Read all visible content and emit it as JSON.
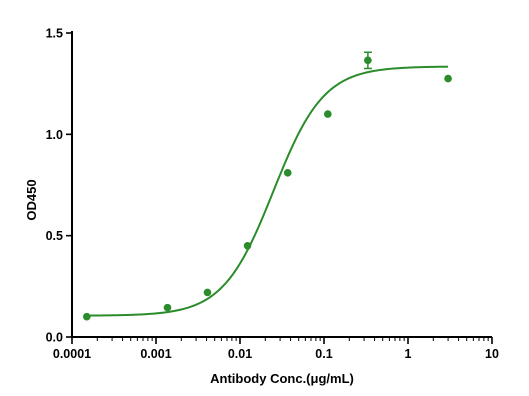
{
  "chart_data": {
    "type": "scatter",
    "xlabel": "Antibody Conc.(μg/mL)",
    "ylabel": "OD450",
    "xscale": "log",
    "xlim": [
      0.0001,
      10
    ],
    "ylim": [
      0,
      1.5
    ],
    "x_ticks": [
      "0.0001",
      "0.001",
      "0.01",
      "0.1",
      "1",
      "10"
    ],
    "y_ticks": [
      "0.0",
      "0.5",
      "1.0",
      "1.5"
    ],
    "grid": false,
    "legend": "none",
    "series": [
      {
        "color": "#2a8c2a",
        "points": [
          {
            "x": 0.00015,
            "y": 0.1
          },
          {
            "x": 0.00137,
            "y": 0.145
          },
          {
            "x": 0.0041,
            "y": 0.22
          },
          {
            "x": 0.0123,
            "y": 0.45
          },
          {
            "x": 0.037,
            "y": 0.81
          },
          {
            "x": 0.111,
            "y": 1.1
          },
          {
            "x": 0.333,
            "y": 1.365,
            "err": 0.04
          },
          {
            "x": 3.0,
            "y": 1.275
          }
        ],
        "fit": {
          "model": "4PL",
          "bottom": 0.105,
          "top": 1.335,
          "ec50": 0.025,
          "hill": 1.45
        }
      }
    ]
  }
}
